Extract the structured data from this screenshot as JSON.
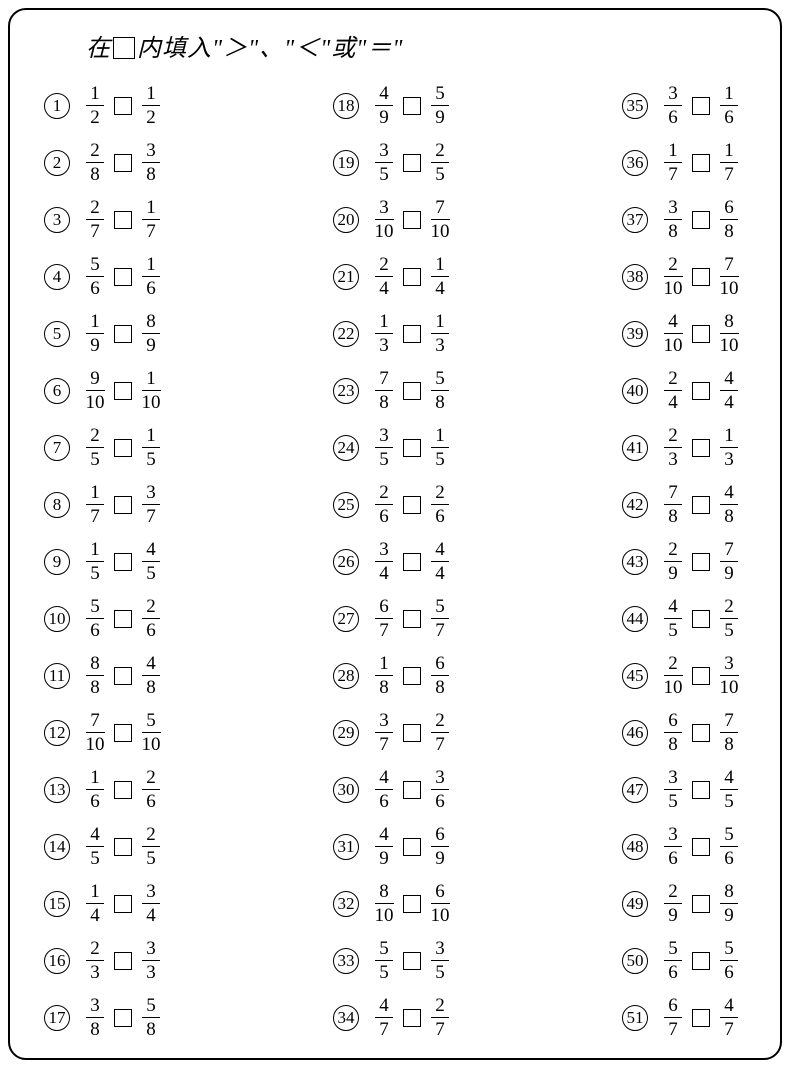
{
  "title_parts": {
    "p1": "在",
    "p2": "内填入\"＞\"、\"＜\"或\"＝\""
  },
  "columns": [
    [
      {
        "n": "①",
        "a": [
          1,
          2
        ],
        "b": [
          1,
          2
        ]
      },
      {
        "n": "②",
        "a": [
          2,
          8
        ],
        "b": [
          3,
          8
        ]
      },
      {
        "n": "③",
        "a": [
          2,
          7
        ],
        "b": [
          1,
          7
        ]
      },
      {
        "n": "④",
        "a": [
          5,
          6
        ],
        "b": [
          1,
          6
        ]
      },
      {
        "n": "⑤",
        "a": [
          1,
          9
        ],
        "b": [
          8,
          9
        ]
      },
      {
        "n": "⑥",
        "a": [
          9,
          10
        ],
        "b": [
          1,
          10
        ]
      },
      {
        "n": "⑦",
        "a": [
          2,
          5
        ],
        "b": [
          1,
          5
        ]
      },
      {
        "n": "⑧",
        "a": [
          1,
          7
        ],
        "b": [
          3,
          7
        ]
      },
      {
        "n": "⑨",
        "a": [
          1,
          5
        ],
        "b": [
          4,
          5
        ]
      },
      {
        "n": "⑩",
        "a": [
          5,
          6
        ],
        "b": [
          2,
          6
        ]
      },
      {
        "n": "⑪",
        "a": [
          8,
          8
        ],
        "b": [
          4,
          8
        ]
      },
      {
        "n": "⑫",
        "a": [
          7,
          10
        ],
        "b": [
          5,
          10
        ]
      },
      {
        "n": "⑬",
        "a": [
          1,
          6
        ],
        "b": [
          2,
          6
        ]
      },
      {
        "n": "⑭",
        "a": [
          4,
          5
        ],
        "b": [
          2,
          5
        ]
      },
      {
        "n": "⑮",
        "a": [
          1,
          4
        ],
        "b": [
          3,
          4
        ]
      },
      {
        "n": "⑯",
        "a": [
          2,
          3
        ],
        "b": [
          3,
          3
        ]
      },
      {
        "n": "⑰",
        "a": [
          3,
          8
        ],
        "b": [
          5,
          8
        ]
      }
    ],
    [
      {
        "n": "⑱",
        "a": [
          4,
          9
        ],
        "b": [
          5,
          9
        ]
      },
      {
        "n": "⑲",
        "a": [
          3,
          5
        ],
        "b": [
          2,
          5
        ]
      },
      {
        "n": "⑳",
        "a": [
          3,
          10
        ],
        "b": [
          7,
          10
        ]
      },
      {
        "n": "㉑",
        "a": [
          2,
          4
        ],
        "b": [
          1,
          4
        ]
      },
      {
        "n": "㉒",
        "a": [
          1,
          3
        ],
        "b": [
          1,
          3
        ]
      },
      {
        "n": "㉓",
        "a": [
          7,
          8
        ],
        "b": [
          5,
          8
        ]
      },
      {
        "n": "㉔",
        "a": [
          3,
          5
        ],
        "b": [
          1,
          5
        ]
      },
      {
        "n": "㉕",
        "a": [
          2,
          6
        ],
        "b": [
          2,
          6
        ]
      },
      {
        "n": "㉖",
        "a": [
          3,
          4
        ],
        "b": [
          4,
          4
        ]
      },
      {
        "n": "㉗",
        "a": [
          6,
          7
        ],
        "b": [
          5,
          7
        ]
      },
      {
        "n": "㉘",
        "a": [
          1,
          8
        ],
        "b": [
          6,
          8
        ]
      },
      {
        "n": "㉙",
        "a": [
          3,
          7
        ],
        "b": [
          2,
          7
        ]
      },
      {
        "n": "㉚",
        "a": [
          4,
          6
        ],
        "b": [
          3,
          6
        ]
      },
      {
        "n": "㉛",
        "a": [
          4,
          9
        ],
        "b": [
          6,
          9
        ]
      },
      {
        "n": "㉜",
        "a": [
          8,
          10
        ],
        "b": [
          6,
          10
        ]
      },
      {
        "n": "㉝",
        "a": [
          5,
          5
        ],
        "b": [
          3,
          5
        ]
      },
      {
        "n": "㉞",
        "a": [
          4,
          7
        ],
        "b": [
          2,
          7
        ]
      }
    ],
    [
      {
        "n": "㉟",
        "a": [
          3,
          6
        ],
        "b": [
          1,
          6
        ]
      },
      {
        "n": "㊱",
        "a": [
          1,
          7
        ],
        "b": [
          1,
          7
        ]
      },
      {
        "n": "㊲",
        "a": [
          3,
          8
        ],
        "b": [
          6,
          8
        ]
      },
      {
        "n": "㊳",
        "a": [
          2,
          10
        ],
        "b": [
          7,
          10
        ]
      },
      {
        "n": "㊴",
        "a": [
          4,
          10
        ],
        "b": [
          8,
          10
        ]
      },
      {
        "n": "㊵",
        "a": [
          2,
          4
        ],
        "b": [
          4,
          4
        ]
      },
      {
        "n": "㊶",
        "a": [
          2,
          3
        ],
        "b": [
          1,
          3
        ]
      },
      {
        "n": "㊷",
        "a": [
          7,
          8
        ],
        "b": [
          4,
          8
        ]
      },
      {
        "n": "㊸",
        "a": [
          2,
          9
        ],
        "b": [
          7,
          9
        ]
      },
      {
        "n": "㊹",
        "a": [
          4,
          5
        ],
        "b": [
          2,
          5
        ]
      },
      {
        "n": "㊺",
        "a": [
          2,
          10
        ],
        "b": [
          3,
          10
        ]
      },
      {
        "n": "㊻",
        "a": [
          6,
          8
        ],
        "b": [
          7,
          8
        ]
      },
      {
        "n": "㊼",
        "a": [
          3,
          5
        ],
        "b": [
          4,
          5
        ]
      },
      {
        "n": "㊽",
        "a": [
          3,
          6
        ],
        "b": [
          5,
          6
        ]
      },
      {
        "n": "㊾",
        "a": [
          2,
          9
        ],
        "b": [
          8,
          9
        ]
      },
      {
        "n": "㊿",
        "a": [
          5,
          6
        ],
        "b": [
          5,
          6
        ]
      },
      {
        "n": "51",
        "a": [
          6,
          7
        ],
        "b": [
          4,
          7
        ]
      }
    ]
  ]
}
